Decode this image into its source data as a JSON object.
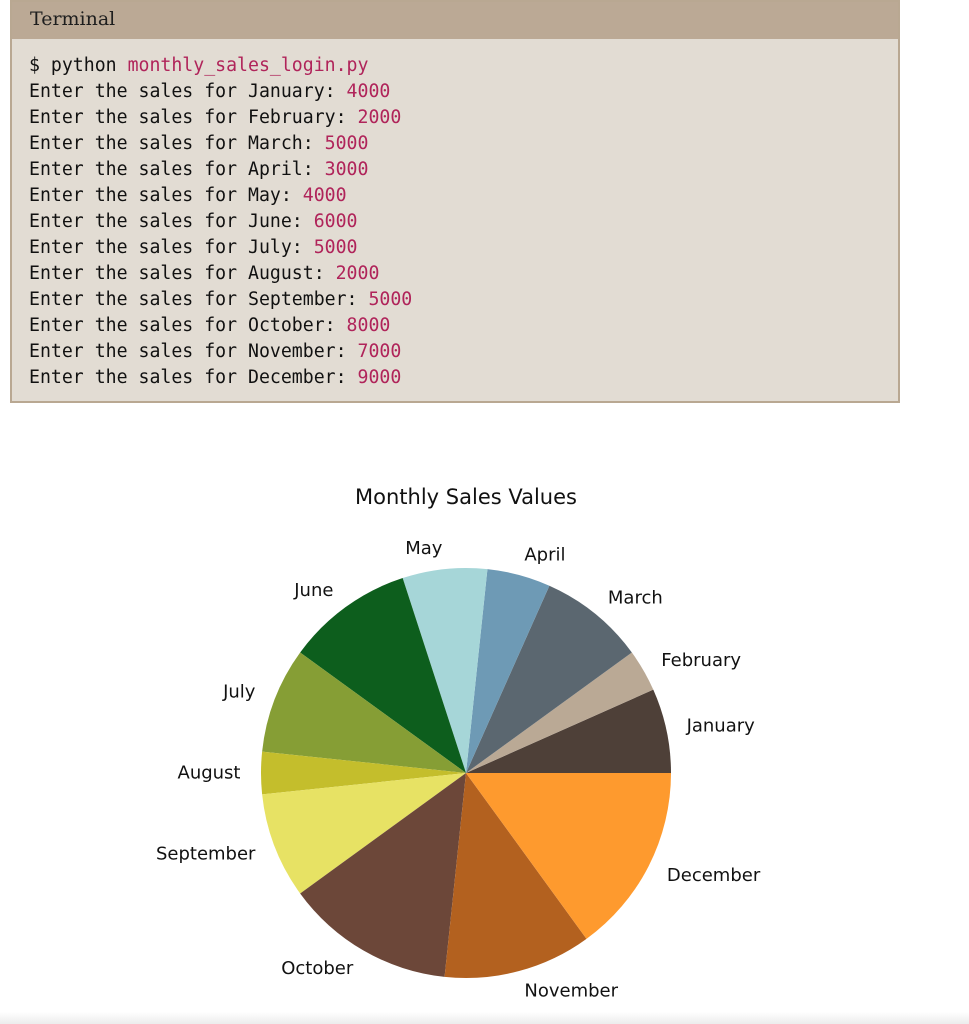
{
  "terminal": {
    "title": "Terminal",
    "prompt": "$ python ",
    "command": "monthly_sales_login.py",
    "lines": [
      {
        "text": "Enter the sales for January: ",
        "value": "4000"
      },
      {
        "text": "Enter the sales for February: ",
        "value": "2000"
      },
      {
        "text": "Enter the sales for March: ",
        "value": "5000"
      },
      {
        "text": "Enter the sales for April: ",
        "value": "3000"
      },
      {
        "text": "Enter the sales for May: ",
        "value": "4000"
      },
      {
        "text": "Enter the sales for June: ",
        "value": "6000"
      },
      {
        "text": "Enter the sales for July: ",
        "value": "5000"
      },
      {
        "text": "Enter the sales for August: ",
        "value": "2000"
      },
      {
        "text": "Enter the sales for September: ",
        "value": "5000"
      },
      {
        "text": "Enter the sales for October: ",
        "value": "8000"
      },
      {
        "text": "Enter the sales for November: ",
        "value": "7000"
      },
      {
        "text": "Enter the sales for December: ",
        "value": "9000"
      }
    ]
  },
  "chart_data": {
    "type": "pie",
    "title": "Monthly Sales Values",
    "categories": [
      "January",
      "February",
      "March",
      "April",
      "May",
      "June",
      "July",
      "August",
      "September",
      "October",
      "November",
      "December"
    ],
    "values": [
      4000,
      2000,
      5000,
      3000,
      4000,
      6000,
      5000,
      2000,
      5000,
      8000,
      7000,
      9000
    ],
    "colors": [
      "#4e4038",
      "#baa995",
      "#5b6770",
      "#6e9ab5",
      "#a6d6d8",
      "#0d5e1d",
      "#869e35",
      "#c4be2c",
      "#e7e264",
      "#6c4739",
      "#b3611f",
      "#fe9a2e"
    ],
    "start_angle_deg": 0,
    "direction": "counterclockwise"
  }
}
